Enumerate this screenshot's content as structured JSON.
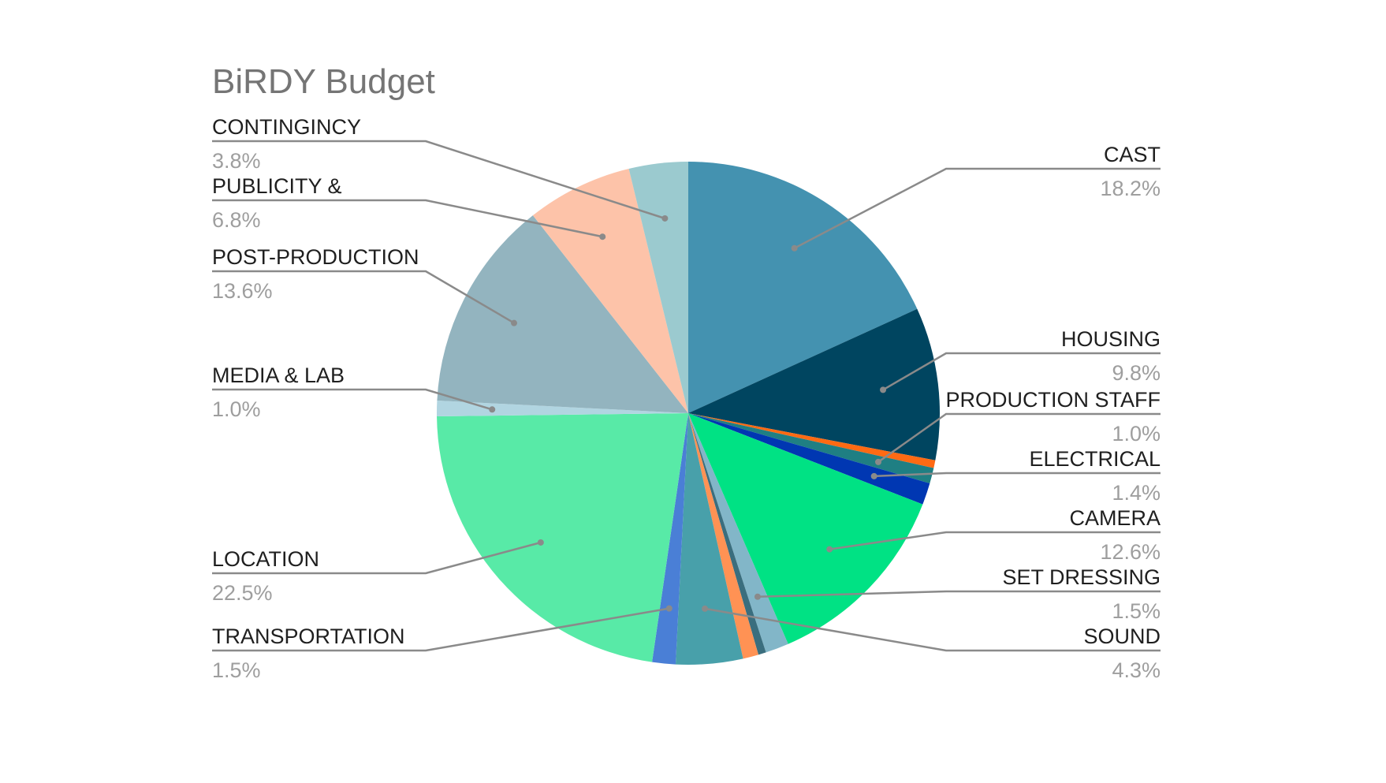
{
  "chart_data": {
    "type": "pie",
    "title": "BiRDY Budget",
    "start_angle_deg": 0,
    "direction": "clockwise",
    "slices": [
      {
        "label": "CAST",
        "value": 18.2,
        "pct_label": "18.2%",
        "color": "#4492b0"
      },
      {
        "label": "HOUSING",
        "value": 9.8,
        "pct_label": "9.8%",
        "color": "#004560"
      },
      {
        "label": "",
        "value": 0.5,
        "pct_label": "",
        "color": "#ff6a13"
      },
      {
        "label": "PRODUCTION STAFF",
        "value": 1.0,
        "pct_label": "1.0%",
        "color": "#1f7f83"
      },
      {
        "label": "ELECTRICAL",
        "value": 1.4,
        "pct_label": "1.4%",
        "color": "#0037b2"
      },
      {
        "label": "CAMERA",
        "value": 12.6,
        "pct_label": "12.6%",
        "color": "#00e284"
      },
      {
        "label": "SET DRESSING",
        "value": 1.5,
        "pct_label": "1.5%",
        "color": "#82b6c8"
      },
      {
        "label": "",
        "value": 0.5,
        "pct_label": "",
        "color": "#3a6e7e"
      },
      {
        "label": "",
        "value": 1.0,
        "pct_label": "",
        "color": "#ff9254"
      },
      {
        "label": "SOUND",
        "value": 4.3,
        "pct_label": "4.3%",
        "color": "#48a0aa"
      },
      {
        "label": "TRANSPORTATION",
        "value": 1.5,
        "pct_label": "1.5%",
        "color": "#4a7fd6"
      },
      {
        "label": "LOCATION",
        "value": 22.5,
        "pct_label": "22.5%",
        "color": "#58eaa7"
      },
      {
        "label": "MEDIA & LAB",
        "value": 1.0,
        "pct_label": "1.0%",
        "color": "#b1d5e1"
      },
      {
        "label": "POST-PRODUCTION",
        "value": 13.6,
        "pct_label": "13.6%",
        "color": "#93b4bf"
      },
      {
        "label": "PUBLICITY &",
        "value": 6.8,
        "pct_label": "6.8%",
        "color": "#fdc3a9"
      },
      {
        "label": "CONTINGINCY",
        "value": 3.8,
        "pct_label": "3.8%",
        "color": "#9bcacf"
      }
    ],
    "legend": "none (outside leader-line labels)"
  }
}
